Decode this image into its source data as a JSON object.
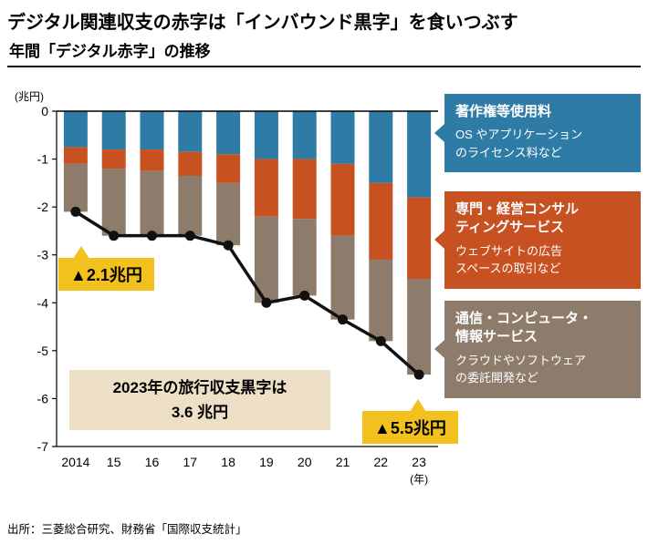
{
  "header": {
    "title": "デジタル関連収支の赤字は「インバウンド黒字」を食いつぶす",
    "subtitle": "年間「デジタル赤字」の推移"
  },
  "chart_data": {
    "type": "bar",
    "variant": "stacked-negative-bars-with-total-line",
    "title": "年間「デジタル赤字」の推移",
    "y_unit_label": "(兆円)",
    "x_suffix": "(年)",
    "categories": [
      "2014",
      "15",
      "16",
      "17",
      "18",
      "19",
      "20",
      "21",
      "22",
      "23"
    ],
    "ylim": [
      -7,
      0
    ],
    "yticks": [
      0,
      -1,
      -2,
      -3,
      -4,
      -5,
      -6,
      -7
    ],
    "grid": false,
    "legend_position": "right",
    "series": [
      {
        "name": "著作権等使用料",
        "color": "#2e7ba6",
        "values": [
          -0.75,
          -0.8,
          -0.8,
          -0.85,
          -0.9,
          -1.0,
          -1.0,
          -1.1,
          -1.5,
          -1.8
        ]
      },
      {
        "name": "専門・経営コンサルティングサービス",
        "color": "#c75120",
        "values": [
          -0.35,
          -0.4,
          -0.45,
          -0.5,
          -0.6,
          -1.2,
          -1.25,
          -1.5,
          -1.6,
          -1.7
        ]
      },
      {
        "name": "通信・コンピュータ・情報サービス",
        "color": "#8d7c6c",
        "values": [
          -1.0,
          -1.4,
          -1.35,
          -1.25,
          -1.3,
          -1.8,
          -1.6,
          -1.75,
          -1.7,
          -2.0
        ]
      }
    ],
    "line_series": {
      "name": "デジタル赤字合計",
      "color": "#111111",
      "values": [
        -2.1,
        -2.6,
        -2.6,
        -2.6,
        -2.8,
        -4.0,
        -3.85,
        -4.35,
        -4.8,
        -5.5
      ]
    }
  },
  "legend": [
    {
      "title": "著作権等使用料",
      "desc": "OS やアプリケーション\nのライセンス料など",
      "color": "#2e7ba6"
    },
    {
      "title": "専門・経営コンサル\nティングサービス",
      "desc": "ウェブサイトの広告\nスペースの取引など",
      "color": "#c75120"
    },
    {
      "title": "通信・コンピュータ・\n情報サービス",
      "desc": "クラウドやソフトウェア\nの委託開発など",
      "color": "#8d7c6c"
    }
  ],
  "annotations": {
    "start_label": "▲2.1兆円",
    "end_label": "▲5.5兆円",
    "note": "2023年の旅行収支黒字は\n3.6 兆円",
    "accent_color": "#f3c11d",
    "note_bg_color": "#ede0c6"
  },
  "footer": {
    "source": "出所：三菱総合研究、財務省「国際収支統計」"
  }
}
